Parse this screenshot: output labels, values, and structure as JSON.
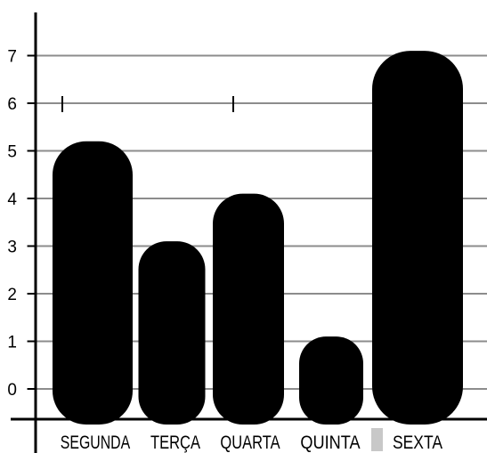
{
  "chart_data": {
    "type": "bar",
    "categories": [
      "SEGUNDA",
      "TERÇA",
      "QUARTA",
      "QUINTA",
      "SEXTA"
    ],
    "values": [
      5.2,
      3.1,
      4.1,
      1.1,
      7.1
    ],
    "title": "",
    "xlabel": "",
    "ylabel": "",
    "ylim": [
      -0.7,
      7.4
    ],
    "yticks": [
      "0",
      "1",
      "2",
      "3",
      "4",
      "5",
      "6",
      "7"
    ],
    "grid": true,
    "legend": "none",
    "colors": {
      "bar": "#000000",
      "grid": "#8c8c8c",
      "axis": "#000000",
      "background": "#ffffff",
      "gap_marker": "#c8c8c8"
    }
  }
}
